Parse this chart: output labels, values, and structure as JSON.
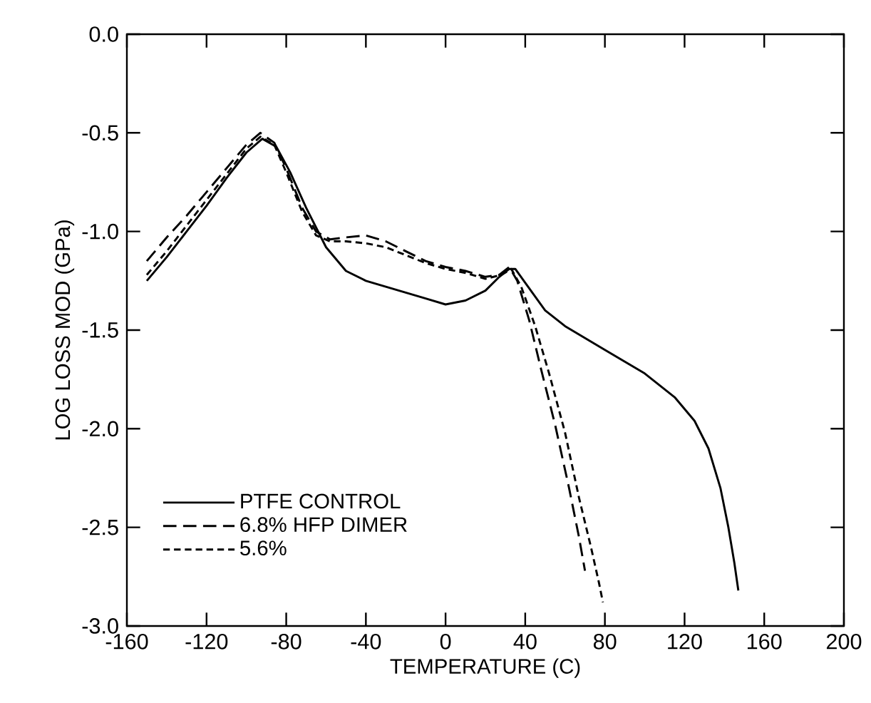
{
  "chart_data": {
    "type": "line",
    "xlabel": "TEMPERATURE (C)",
    "ylabel": "LOG LOSS MOD (GPa)",
    "xlim": [
      -160,
      200
    ],
    "xticks": [
      -160,
      -120,
      -80,
      -40,
      0,
      40,
      80,
      120,
      160,
      200
    ],
    "ylim": [
      -3.0,
      0.0
    ],
    "yticks": [
      {
        "value": 0.0,
        "label": "0.0"
      },
      {
        "value": -0.5,
        "label": "-0.5"
      },
      {
        "value": -1.0,
        "label": "-1.0"
      },
      {
        "value": -1.5,
        "label": "-1.5"
      },
      {
        "value": -2.0,
        "label": "-2.0"
      },
      {
        "value": -2.5,
        "label": "-2.5"
      },
      {
        "value": -3.0,
        "label": "-3.0"
      }
    ],
    "grid": false,
    "legend": "bottom left",
    "marker": "none",
    "series": [
      {
        "name": "PTFE CONTROL",
        "color": "#000000",
        "line_style": "solid",
        "x": [
          -150,
          -140,
          -130,
          -120,
          -110,
          -100,
          -92,
          -85,
          -78,
          -70,
          -60,
          -50,
          -40,
          -30,
          -20,
          -10,
          0,
          10,
          20,
          27,
          32,
          35,
          40,
          50,
          60,
          80,
          100,
          115,
          125,
          132,
          138,
          142,
          145,
          147
        ],
        "values": [
          -1.25,
          -1.13,
          -1.0,
          -0.87,
          -0.73,
          -0.6,
          -0.53,
          -0.57,
          -0.7,
          -0.88,
          -1.08,
          -1.2,
          -1.25,
          -1.28,
          -1.31,
          -1.34,
          -1.37,
          -1.35,
          -1.3,
          -1.23,
          -1.19,
          -1.19,
          -1.26,
          -1.4,
          -1.48,
          -1.6,
          -1.72,
          -1.84,
          -1.96,
          -2.1,
          -2.3,
          -2.5,
          -2.68,
          -2.82
        ]
      },
      {
        "name": "6.8% HFP DIMER",
        "color": "#000000",
        "line_style": "dashed",
        "x": [
          -150,
          -140,
          -130,
          -120,
          -110,
          -100,
          -93,
          -86,
          -80,
          -72,
          -65,
          -58,
          -50,
          -40,
          -30,
          -20,
          -10,
          0,
          10,
          20,
          27,
          32,
          36,
          42,
          48,
          55,
          62,
          67,
          70
        ],
        "values": [
          -1.15,
          -1.03,
          -0.92,
          -0.8,
          -0.68,
          -0.56,
          -0.5,
          -0.55,
          -0.68,
          -0.88,
          -1.0,
          -1.04,
          -1.03,
          -1.02,
          -1.05,
          -1.1,
          -1.15,
          -1.18,
          -1.2,
          -1.23,
          -1.22,
          -1.18,
          -1.25,
          -1.45,
          -1.7,
          -1.98,
          -2.3,
          -2.55,
          -2.72
        ]
      },
      {
        "name": "5.6%",
        "color": "#000000",
        "line_style": "dashed",
        "x": [
          -150,
          -140,
          -130,
          -120,
          -110,
          -100,
          -93,
          -86,
          -80,
          -72,
          -65,
          -58,
          -50,
          -40,
          -30,
          -20,
          -10,
          0,
          10,
          20,
          28,
          33,
          38,
          45,
          52,
          60,
          67,
          73,
          77,
          79
        ],
        "values": [
          -1.22,
          -1.1,
          -0.97,
          -0.84,
          -0.71,
          -0.58,
          -0.52,
          -0.56,
          -0.7,
          -0.9,
          -1.02,
          -1.05,
          -1.05,
          -1.06,
          -1.08,
          -1.12,
          -1.16,
          -1.19,
          -1.21,
          -1.24,
          -1.22,
          -1.19,
          -1.28,
          -1.48,
          -1.72,
          -2.02,
          -2.35,
          -2.6,
          -2.78,
          -2.88
        ]
      }
    ]
  }
}
